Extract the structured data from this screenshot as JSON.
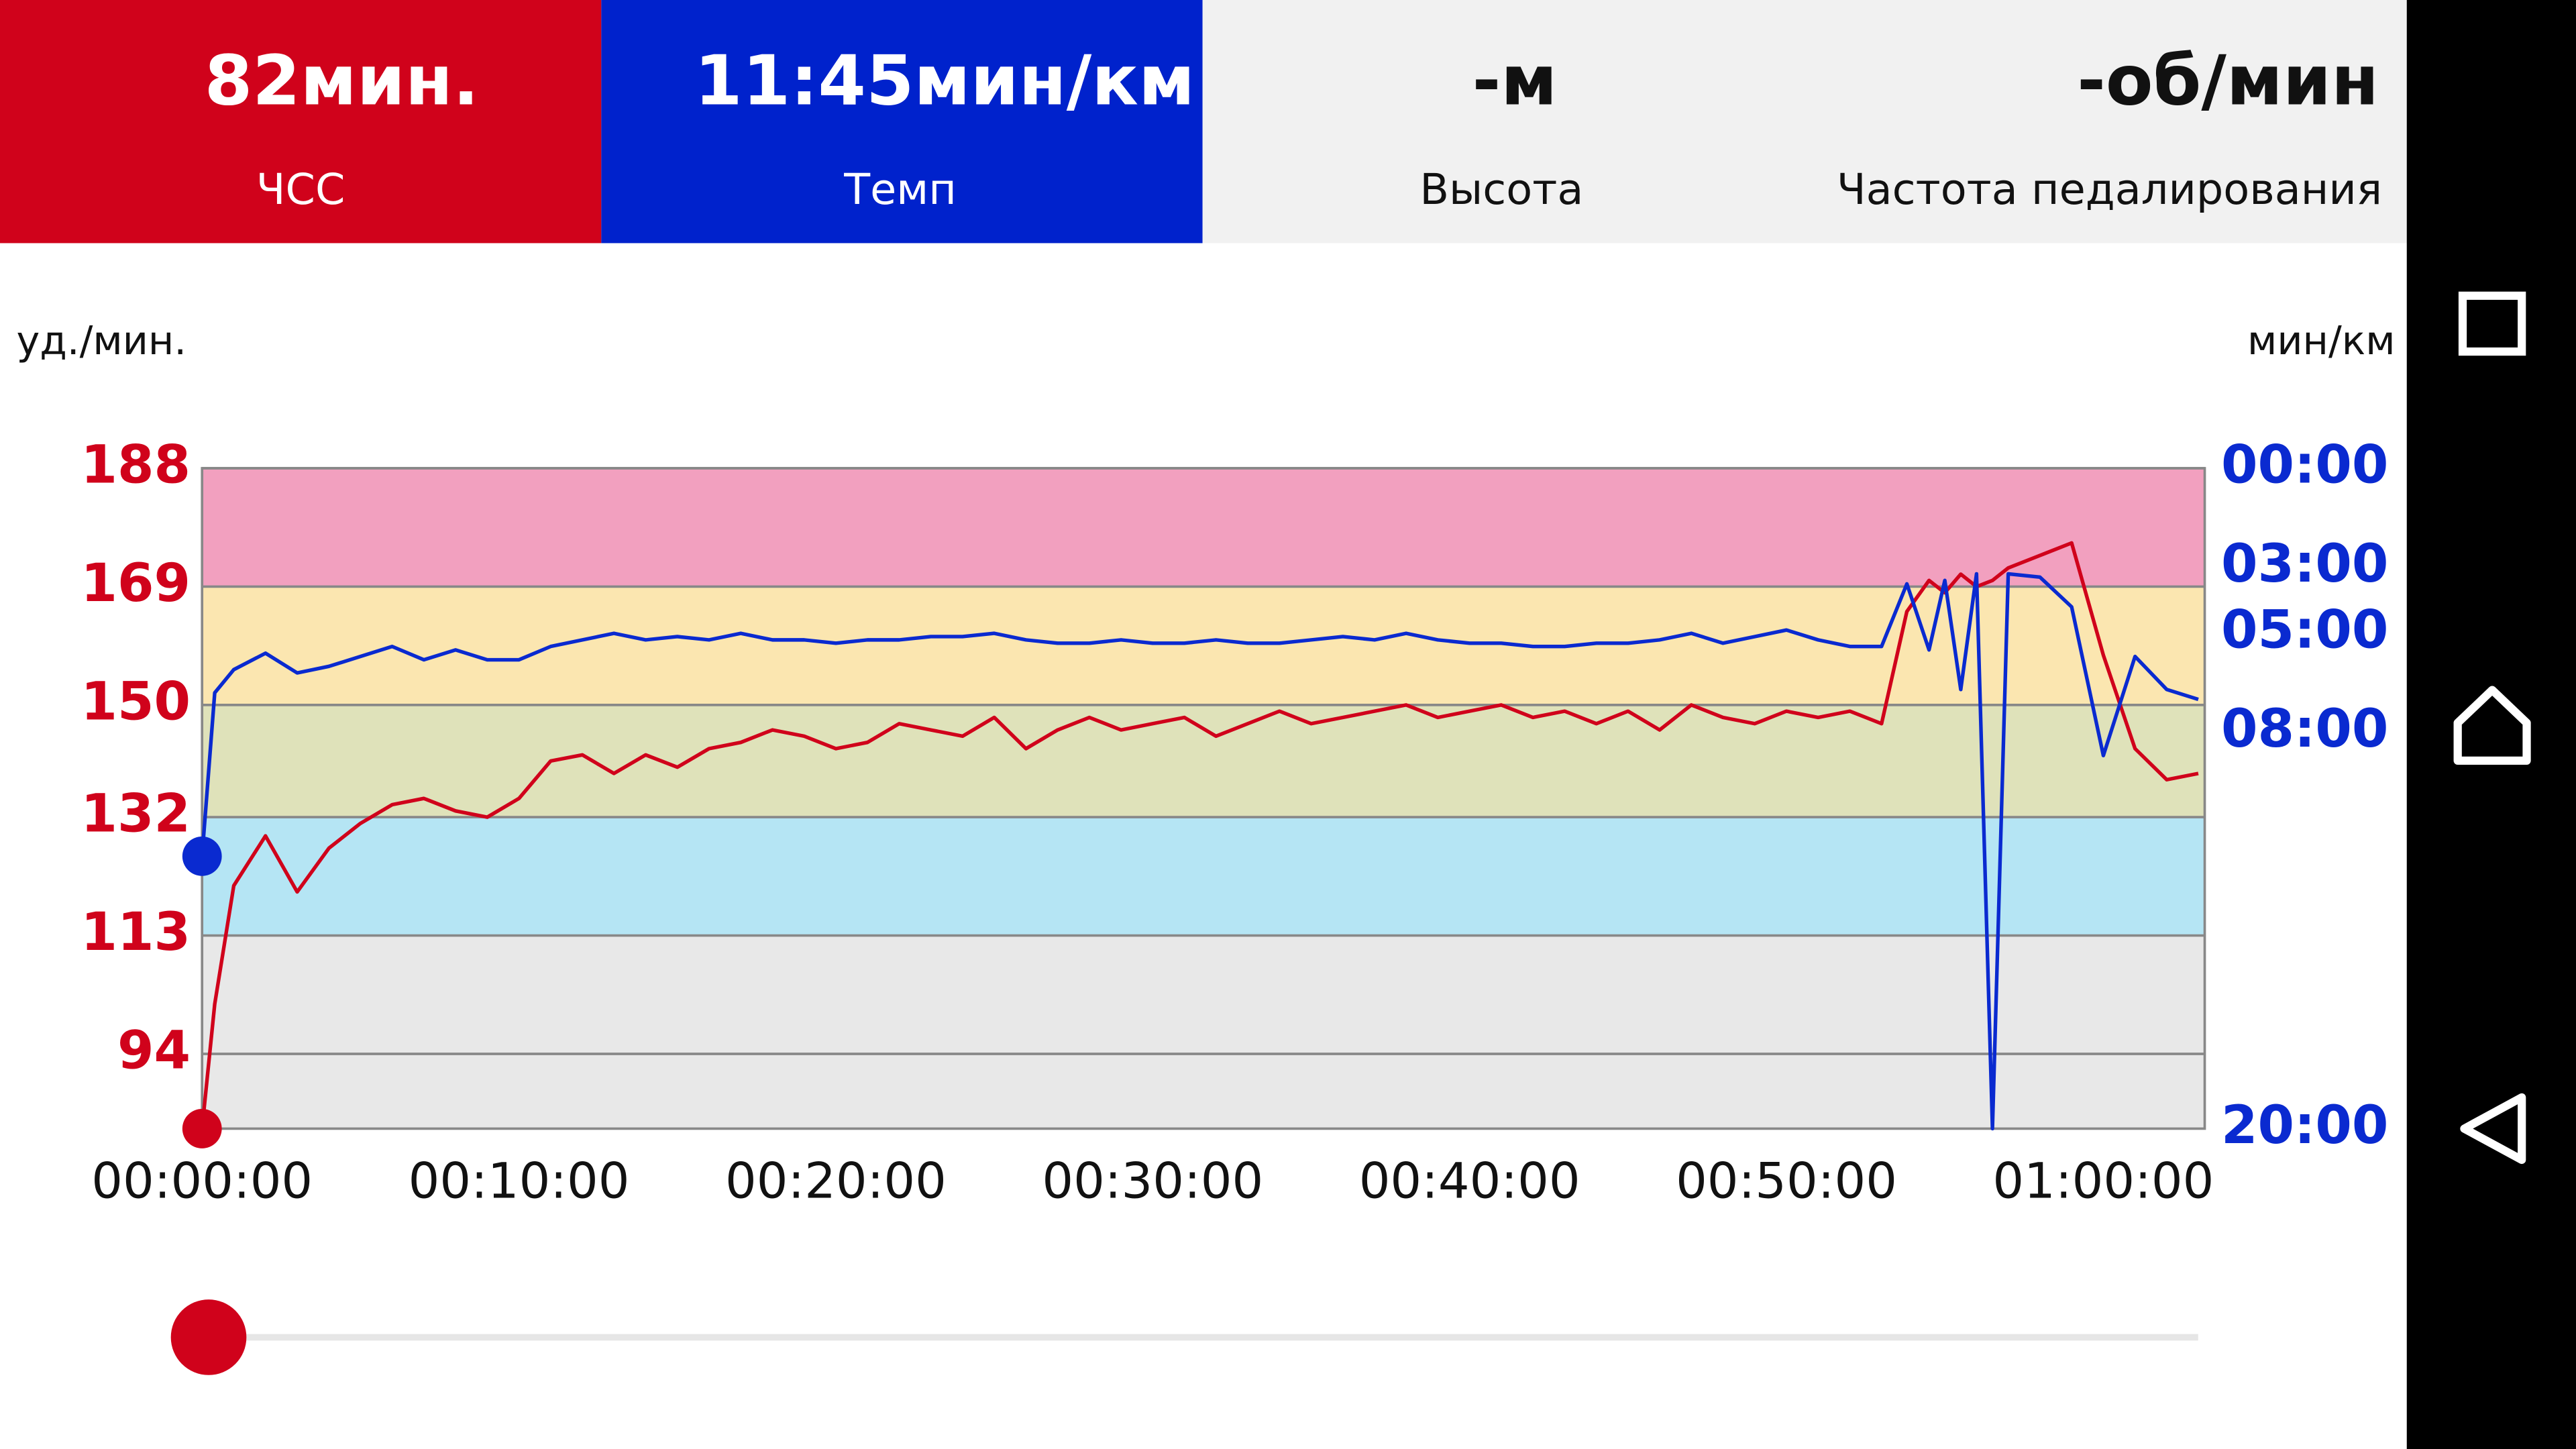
{
  "header": {
    "tiles": [
      {
        "value": "82мин.",
        "label": "ЧСС"
      },
      {
        "value": "11:45мин/км",
        "label": "Темп"
      },
      {
        "value": "-м",
        "label": "Высота"
      },
      {
        "value": "-об/мин",
        "label": "Частота педалирования"
      }
    ]
  },
  "chart_data": {
    "type": "line",
    "ylabel": "уд./мин.",
    "y2label": "мин/км",
    "x": [
      0,
      0.4,
      1,
      2,
      3,
      4,
      5,
      6,
      7,
      8,
      9,
      10,
      11,
      12,
      13,
      14,
      15,
      16,
      17,
      18,
      19,
      20,
      21,
      22,
      23,
      24,
      25,
      26,
      27,
      28,
      29,
      30,
      31,
      32,
      33,
      34,
      35,
      36,
      37,
      38,
      39,
      40,
      41,
      42,
      43,
      44,
      45,
      46,
      47,
      48,
      49,
      50,
      51,
      52,
      53,
      53.8,
      54.5,
      55,
      55.5,
      56,
      56.5,
      57,
      58,
      59,
      60,
      61,
      62,
      63
    ],
    "series": [
      {
        "name": "ЧСС",
        "color": "#d0021b",
        "values": [
          82,
          102,
          121,
          129,
          120,
          127,
          131,
          134,
          135,
          133,
          132,
          135,
          141,
          142,
          139,
          142,
          140,
          143,
          144,
          146,
          145,
          143,
          144,
          147,
          146,
          145,
          148,
          143,
          146,
          148,
          146,
          147,
          148,
          145,
          147,
          149,
          147,
          148,
          149,
          150,
          148,
          149,
          150,
          148,
          149,
          147,
          149,
          146,
          150,
          148,
          147,
          149,
          148,
          149,
          147,
          165,
          170,
          168,
          171,
          169,
          170,
          172,
          174,
          176,
          158,
          143,
          138,
          139
        ]
      },
      {
        "name": "Темп",
        "color": "#0a2ad0",
        "axis": "y2",
        "values": [
          11.75,
          6.8,
          6.1,
          5.6,
          6.2,
          6.0,
          5.7,
          5.4,
          5.8,
          5.5,
          5.8,
          5.8,
          5.4,
          5.2,
          5.0,
          5.2,
          5.1,
          5.2,
          5.0,
          5.2,
          5.2,
          5.3,
          5.2,
          5.2,
          5.1,
          5.1,
          5.0,
          5.2,
          5.3,
          5.3,
          5.2,
          5.3,
          5.3,
          5.2,
          5.3,
          5.3,
          5.2,
          5.1,
          5.2,
          5.0,
          5.2,
          5.3,
          5.3,
          5.4,
          5.4,
          5.3,
          5.3,
          5.2,
          5.0,
          5.3,
          5.1,
          4.9,
          5.2,
          5.4,
          5.4,
          3.5,
          5.5,
          3.4,
          6.7,
          3.2,
          20,
          3.2,
          3.3,
          4.2,
          8.7,
          5.7,
          6.7,
          7.0
        ]
      }
    ],
    "xlim": [
      0,
      63.2
    ],
    "xticks": [
      {
        "value": 0,
        "label": "00:00:00"
      },
      {
        "value": 10,
        "label": "00:10:00"
      },
      {
        "value": 20,
        "label": "00:20:00"
      },
      {
        "value": 30,
        "label": "00:30:00"
      },
      {
        "value": 40,
        "label": "00:40:00"
      },
      {
        "value": 50,
        "label": "00:50:00"
      },
      {
        "value": 60,
        "label": "01:00:00"
      }
    ],
    "ylim": [
      82,
      188
    ],
    "yticks": [
      188,
      169,
      150,
      132,
      113,
      94
    ],
    "y2lim": [
      20,
      0
    ],
    "y2ticks": [
      {
        "value": 0,
        "label": "00:00"
      },
      {
        "value": 3,
        "label": "03:00"
      },
      {
        "value": 5,
        "label": "05:00"
      },
      {
        "value": 8,
        "label": "08:00"
      },
      {
        "value": 20,
        "label": "20:00"
      }
    ],
    "zones": [
      {
        "from": 169,
        "to": 188,
        "color": "#f2a0bf"
      },
      {
        "from": 150,
        "to": 169,
        "color": "#fbe6b0"
      },
      {
        "from": 132,
        "to": 150,
        "color": "#dfe2ba"
      },
      {
        "from": 113,
        "to": 132,
        "color": "#b5e5f4"
      },
      {
        "from": 82,
        "to": 113,
        "color": "#e8e8e8"
      }
    ],
    "grid": true
  }
}
